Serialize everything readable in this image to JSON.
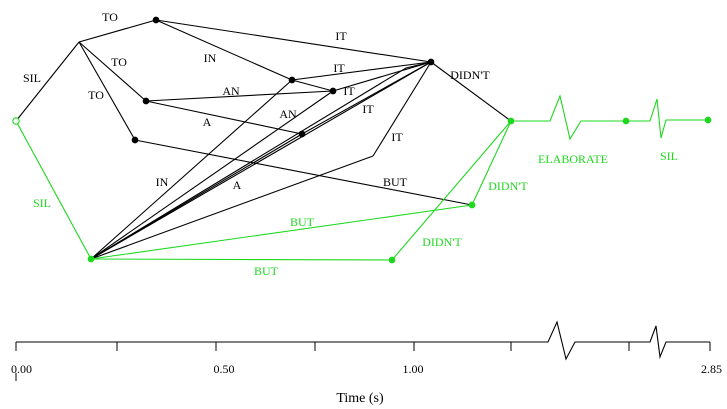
{
  "colors": {
    "black": "#000000",
    "green": "#1ed81e"
  },
  "nodes": {
    "n_start": {
      "color": "green",
      "kind": "hollow"
    },
    "n_sil_end": {
      "color": "black",
      "kind": "none"
    },
    "n_to_top": {
      "color": "black",
      "kind": "filled"
    },
    "n_to_mid": {
      "color": "black",
      "kind": "filled"
    },
    "n_to_low": {
      "color": "black",
      "kind": "filled"
    },
    "n_in_end": {
      "color": "black",
      "kind": "filled"
    },
    "n_it_a": {
      "color": "black",
      "kind": "filled"
    },
    "n_an_end": {
      "color": "black",
      "kind": "filled"
    },
    "n_it_hub": {
      "color": "black",
      "kind": "filled"
    },
    "n_kink": {
      "color": "black",
      "kind": "none"
    },
    "n_green_hub": {
      "color": "green",
      "kind": "filled"
    },
    "n_but_end": {
      "color": "green",
      "kind": "filled"
    },
    "n_but2_end": {
      "color": "green",
      "kind": "filled"
    },
    "n_elab_end": {
      "color": "green",
      "kind": "filled"
    },
    "n_sil2_end": {
      "color": "green",
      "kind": "filled"
    },
    "n_didnt_end": {
      "color": "green",
      "kind": "filled"
    }
  },
  "edges": [
    {
      "label": "SIL",
      "color": "black"
    },
    {
      "label": "TO",
      "color": "black"
    },
    {
      "label": "TO",
      "color": "black"
    },
    {
      "label": "TO",
      "color": "black"
    },
    {
      "label": "IN",
      "color": "black"
    },
    {
      "label": "IT",
      "color": "black"
    },
    {
      "label": "AN",
      "color": "black"
    },
    {
      "label": "A",
      "color": "black"
    },
    {
      "label": "BUT",
      "color": "black"
    },
    {
      "label": "IT",
      "color": "black"
    },
    {
      "label": "AN",
      "color": "black"
    },
    {
      "label": "IT",
      "color": "black"
    },
    {
      "label": "IT",
      "color": "black"
    },
    {
      "label": "IT",
      "color": "black"
    },
    {
      "label": "DIDN'T",
      "color": "black"
    },
    {
      "label": "IN",
      "color": "black"
    },
    {
      "label": "A",
      "color": "black"
    },
    {
      "label": "",
      "color": "black"
    },
    {
      "label": "",
      "color": "black"
    },
    {
      "label": "",
      "color": "black"
    },
    {
      "label": "",
      "color": "black"
    },
    {
      "label": "SIL",
      "color": "green"
    },
    {
      "label": "BUT",
      "color": "green"
    },
    {
      "label": "BUT",
      "color": "green"
    },
    {
      "label": "DIDN'T",
      "color": "green"
    },
    {
      "label": "DIDN'T",
      "color": "green"
    },
    {
      "label": "ELABORATE",
      "color": "green"
    },
    {
      "label": "SIL",
      "color": "green"
    }
  ],
  "axis": {
    "title": "Time (s)",
    "tick_labels": [
      "0.00",
      "0.50",
      "1.00",
      "2.85"
    ]
  }
}
